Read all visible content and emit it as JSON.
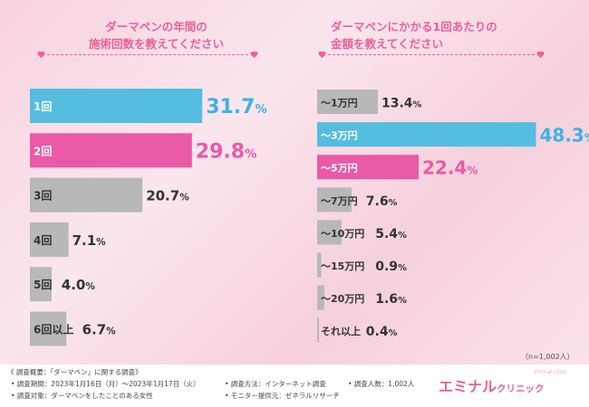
{
  "colors": {
    "blue": "#55bde0",
    "pink": "#ea5aa6",
    "gray": "#b8b8b8",
    "label_pink": "#ea5aa6",
    "dark": "#333333",
    "blue_text": "#3fb2df"
  },
  "left_title": {
    "line1": "ダーマペンの年間の",
    "line2": "施術回数を教えてください"
  },
  "right_title": {
    "line1": "ダーマペンにかかる1回あたりの",
    "line2": "金額を教えてください"
  },
  "note": "（n=1,002人）",
  "survey": {
    "heading": "《 調査概要：「ダーマペン」に関する調査》",
    "period": "• 調査期間：2023年1月16日（月）〜2023年1月17日（火）",
    "target": "• 調査対象：ダーマペンをしたことのある女性",
    "method": "• 調査方法：インターネット調査",
    "count": "• 調査人数：1,002人",
    "provider": "• モニター提供元：ゼネラルリサーチ"
  },
  "logo": {
    "main": "エミナル",
    "sub": "クリニック",
    "small": "Emiral clinic"
  },
  "chart_data": [
    {
      "type": "bar",
      "title": "ダーマペンの年間の施術回数を教えてください",
      "categories": [
        "1回",
        "2回",
        "3回",
        "4回",
        "5回",
        "6回以上"
      ],
      "values": [
        31.7,
        29.8,
        20.7,
        7.1,
        4.0,
        6.7
      ],
      "unit": "%",
      "xlim": [
        0,
        50
      ],
      "highlight": [
        "blue",
        "pink",
        "gray",
        "gray",
        "gray",
        "gray"
      ]
    },
    {
      "type": "bar",
      "title": "ダーマペンにかかる1回あたりの金額を教えてください",
      "categories": [
        "〜1万円",
        "〜3万円",
        "〜5万円",
        "〜7万円",
        "〜10万円",
        "〜15万円",
        "〜20万円",
        "それ以上"
      ],
      "values": [
        13.4,
        48.3,
        22.4,
        7.6,
        5.4,
        0.9,
        1.6,
        0.4
      ],
      "unit": "%",
      "xlim": [
        0,
        50
      ],
      "highlight": [
        "gray",
        "blue",
        "pink",
        "gray",
        "gray",
        "gray",
        "gray",
        "gray"
      ]
    }
  ]
}
